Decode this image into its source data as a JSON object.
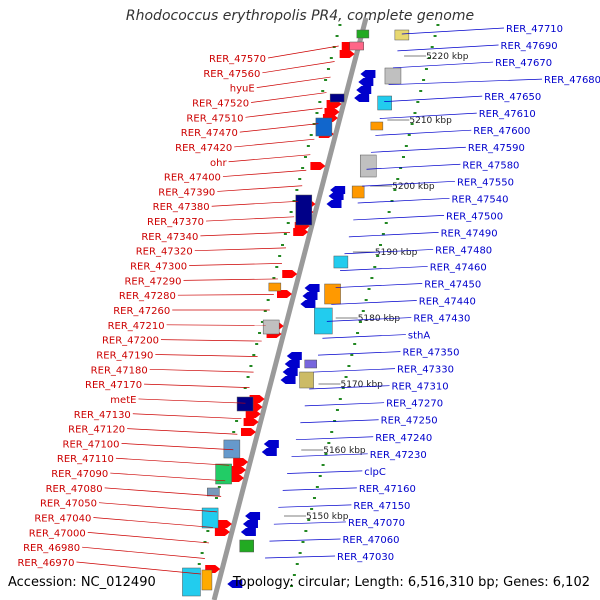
{
  "title": "Rhodococcus erythropolis PR4, complete genome",
  "footer": {
    "accession": "Accession: NC_012490",
    "topology": "Topology: circular; Length: 6,516,310 bp; Genes: 6,102"
  },
  "colors": {
    "left_labels": "#cc0000",
    "right_labels": "#0000cc",
    "backbone": "#9a9a9a",
    "tick_dots": "#228822",
    "forward_genes": "#ff0000",
    "reverse_genes": "#0000cc"
  },
  "left_labels": [
    "RER_47570",
    "RER_47560",
    "hyuE",
    "RER_47520",
    "RER_47510",
    "RER_47470",
    "RER_47420",
    "ohr",
    "RER_47400",
    "RER_47390",
    "RER_47380",
    "RER_47370",
    "RER_47340",
    "RER_47320",
    "RER_47300",
    "RER_47290",
    "RER_47280",
    "RER_47260",
    "RER_47210",
    "RER_47200",
    "RER_47190",
    "RER_47180",
    "RER_47170",
    "metE",
    "RER_47130",
    "RER_47120",
    "RER_47100",
    "RER_47110",
    "RER_47090",
    "RER_47080",
    "RER_47050",
    "RER_47040",
    "RER_47000",
    "RER_46980",
    "RER_46970"
  ],
  "right_labels": [
    "RER_47710",
    "RER_47690",
    "RER_47670",
    "RER_47680",
    "RER_47650",
    "RER_47610",
    "RER_47600",
    "RER_47590",
    "RER_47580",
    "RER_47550",
    "RER_47540",
    "RER_47500",
    "RER_47490",
    "RER_47480",
    "RER_47460",
    "RER_47450",
    "RER_47440",
    "RER_47430",
    "sthA",
    "RER_47350",
    "RER_47330",
    "RER_47310",
    "RER_47270",
    "RER_47250",
    "RER_47240",
    "RER_47230",
    "clpC",
    "RER_47160",
    "RER_47150",
    "RER_47070",
    "RER_47060",
    "RER_47030"
  ],
  "scale_labels": [
    "5220 kbp",
    "5210 kbp",
    "5200 kbp",
    "5190 kbp",
    "5180 kbp",
    "5170 kbp",
    "5160 kbp",
    "5150 kbp"
  ]
}
